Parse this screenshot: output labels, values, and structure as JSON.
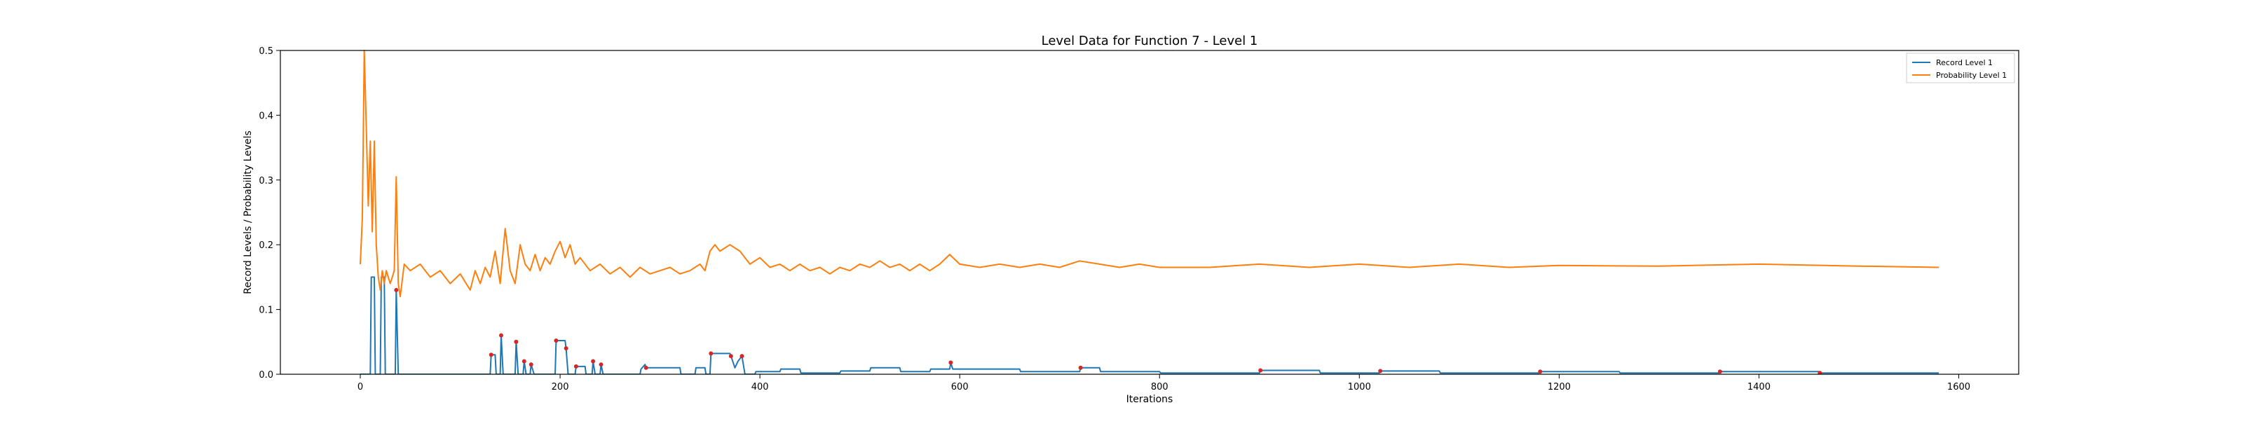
{
  "chart_data": {
    "type": "line",
    "title": "Level Data for Function 7 - Level 1",
    "xlabel": "Iterations",
    "ylabel": "Record Levels / Probability Levels",
    "xlim": [
      -80,
      1660
    ],
    "ylim": [
      0,
      0.5
    ],
    "x_ticks": [
      "0",
      "200",
      "400",
      "600",
      "800",
      "1000",
      "1200",
      "1400",
      "1600"
    ],
    "x_tick_values": [
      0,
      200,
      400,
      600,
      800,
      1000,
      1200,
      1400,
      1600
    ],
    "y_ticks": [
      "0.0",
      "0.1",
      "0.2",
      "0.3",
      "0.4",
      "0.5"
    ],
    "y_tick_values": [
      0,
      0.1,
      0.2,
      0.3,
      0.4,
      0.5
    ],
    "grid": false,
    "legend_position": "top-right",
    "series": [
      {
        "name": "Record Level 1",
        "color": "#1f77b4",
        "points": [
          [
            0,
            0
          ],
          [
            10,
            0
          ],
          [
            11,
            0.15
          ],
          [
            14,
            0.15
          ],
          [
            15,
            0
          ],
          [
            20,
            0
          ],
          [
            21,
            0.15
          ],
          [
            24,
            0.15
          ],
          [
            25,
            0
          ],
          [
            35,
            0
          ],
          [
            36,
            0.13
          ],
          [
            38,
            0
          ],
          [
            130,
            0
          ],
          [
            131,
            0.03
          ],
          [
            135,
            0.03
          ],
          [
            136,
            0
          ],
          [
            140,
            0
          ],
          [
            141,
            0.06
          ],
          [
            143,
            0
          ],
          [
            155,
            0
          ],
          [
            156,
            0.05
          ],
          [
            158,
            0
          ],
          [
            163,
            0
          ],
          [
            164,
            0.02
          ],
          [
            166,
            0
          ],
          [
            170,
            0
          ],
          [
            171,
            0.015
          ],
          [
            174,
            0
          ],
          [
            195,
            0
          ],
          [
            196,
            0.052
          ],
          [
            205,
            0.052
          ],
          [
            206,
            0.04
          ],
          [
            208,
            0
          ],
          [
            215,
            0
          ],
          [
            216,
            0.012
          ],
          [
            225,
            0.012
          ],
          [
            226,
            0
          ],
          [
            232,
            0
          ],
          [
            233,
            0.02
          ],
          [
            235,
            0
          ],
          [
            240,
            0
          ],
          [
            241,
            0.015
          ],
          [
            243,
            0
          ],
          [
            280,
            0
          ],
          [
            281,
            0.008
          ],
          [
            285,
            0.015
          ],
          [
            286,
            0.01
          ],
          [
            320,
            0.01
          ],
          [
            321,
            0
          ],
          [
            335,
            0
          ],
          [
            336,
            0.01
          ],
          [
            345,
            0.01
          ],
          [
            346,
            0
          ],
          [
            350,
            0
          ],
          [
            351,
            0.032
          ],
          [
            370,
            0.032
          ],
          [
            371,
            0.028
          ],
          [
            375,
            0.01
          ],
          [
            378,
            0.02
          ],
          [
            382,
            0.028
          ],
          [
            385,
            0
          ],
          [
            395,
            0
          ],
          [
            396,
            0.004
          ],
          [
            420,
            0.004
          ],
          [
            421,
            0.008
          ],
          [
            440,
            0.008
          ],
          [
            441,
            0.002
          ],
          [
            480,
            0.002
          ],
          [
            481,
            0.005
          ],
          [
            510,
            0.005
          ],
          [
            511,
            0.01
          ],
          [
            540,
            0.01
          ],
          [
            541,
            0.004
          ],
          [
            570,
            0.004
          ],
          [
            571,
            0.008
          ],
          [
            590,
            0.008
          ],
          [
            591,
            0.018
          ],
          [
            593,
            0.008
          ],
          [
            660,
            0.008
          ],
          [
            661,
            0.004
          ],
          [
            720,
            0.004
          ],
          [
            721,
            0.01
          ],
          [
            740,
            0.01
          ],
          [
            741,
            0.004
          ],
          [
            800,
            0.004
          ],
          [
            801,
            0.002
          ],
          [
            900,
            0.002
          ],
          [
            901,
            0.006
          ],
          [
            960,
            0.006
          ],
          [
            961,
            0.002
          ],
          [
            1020,
            0.002
          ],
          [
            1021,
            0.005
          ],
          [
            1080,
            0.005
          ],
          [
            1081,
            0.002
          ],
          [
            1180,
            0.002
          ],
          [
            1181,
            0.004
          ],
          [
            1260,
            0.004
          ],
          [
            1261,
            0.002
          ],
          [
            1360,
            0.002
          ],
          [
            1361,
            0.004
          ],
          [
            1460,
            0.004
          ],
          [
            1461,
            0.002
          ],
          [
            1580,
            0.002
          ]
        ]
      },
      {
        "name": "Probability Level 1",
        "color": "#ff7f0e",
        "points": [
          [
            0,
            0.17
          ],
          [
            2,
            0.24
          ],
          [
            4,
            0.5
          ],
          [
            6,
            0.38
          ],
          [
            8,
            0.26
          ],
          [
            10,
            0.36
          ],
          [
            12,
            0.22
          ],
          [
            14,
            0.36
          ],
          [
            16,
            0.2
          ],
          [
            18,
            0.15
          ],
          [
            20,
            0.13
          ],
          [
            22,
            0.16
          ],
          [
            24,
            0.14
          ],
          [
            26,
            0.16
          ],
          [
            28,
            0.15
          ],
          [
            30,
            0.14
          ],
          [
            32,
            0.15
          ],
          [
            34,
            0.16
          ],
          [
            36,
            0.305
          ],
          [
            38,
            0.14
          ],
          [
            40,
            0.12
          ],
          [
            44,
            0.17
          ],
          [
            50,
            0.16
          ],
          [
            60,
            0.17
          ],
          [
            70,
            0.15
          ],
          [
            80,
            0.16
          ],
          [
            90,
            0.14
          ],
          [
            100,
            0.155
          ],
          [
            110,
            0.13
          ],
          [
            115,
            0.16
          ],
          [
            120,
            0.14
          ],
          [
            125,
            0.165
          ],
          [
            130,
            0.15
          ],
          [
            135,
            0.19
          ],
          [
            140,
            0.14
          ],
          [
            145,
            0.225
          ],
          [
            150,
            0.16
          ],
          [
            155,
            0.14
          ],
          [
            160,
            0.2
          ],
          [
            165,
            0.17
          ],
          [
            170,
            0.16
          ],
          [
            175,
            0.185
          ],
          [
            180,
            0.16
          ],
          [
            185,
            0.18
          ],
          [
            190,
            0.17
          ],
          [
            195,
            0.19
          ],
          [
            200,
            0.205
          ],
          [
            205,
            0.18
          ],
          [
            210,
            0.2
          ],
          [
            215,
            0.17
          ],
          [
            220,
            0.18
          ],
          [
            230,
            0.16
          ],
          [
            240,
            0.17
          ],
          [
            250,
            0.155
          ],
          [
            260,
            0.165
          ],
          [
            270,
            0.15
          ],
          [
            280,
            0.165
          ],
          [
            290,
            0.155
          ],
          [
            300,
            0.16
          ],
          [
            310,
            0.165
          ],
          [
            320,
            0.155
          ],
          [
            330,
            0.16
          ],
          [
            340,
            0.17
          ],
          [
            345,
            0.16
          ],
          [
            350,
            0.19
          ],
          [
            355,
            0.2
          ],
          [
            360,
            0.19
          ],
          [
            370,
            0.2
          ],
          [
            380,
            0.19
          ],
          [
            390,
            0.17
          ],
          [
            400,
            0.18
          ],
          [
            410,
            0.165
          ],
          [
            420,
            0.17
          ],
          [
            430,
            0.16
          ],
          [
            440,
            0.17
          ],
          [
            450,
            0.16
          ],
          [
            460,
            0.165
          ],
          [
            470,
            0.155
          ],
          [
            480,
            0.165
          ],
          [
            490,
            0.16
          ],
          [
            500,
            0.17
          ],
          [
            510,
            0.165
          ],
          [
            520,
            0.175
          ],
          [
            530,
            0.165
          ],
          [
            540,
            0.17
          ],
          [
            550,
            0.16
          ],
          [
            560,
            0.17
          ],
          [
            570,
            0.16
          ],
          [
            580,
            0.17
          ],
          [
            590,
            0.185
          ],
          [
            600,
            0.17
          ],
          [
            620,
            0.165
          ],
          [
            640,
            0.17
          ],
          [
            660,
            0.165
          ],
          [
            680,
            0.17
          ],
          [
            700,
            0.165
          ],
          [
            720,
            0.175
          ],
          [
            740,
            0.17
          ],
          [
            760,
            0.165
          ],
          [
            780,
            0.17
          ],
          [
            800,
            0.165
          ],
          [
            850,
            0.165
          ],
          [
            900,
            0.17
          ],
          [
            950,
            0.165
          ],
          [
            1000,
            0.17
          ],
          [
            1050,
            0.165
          ],
          [
            1100,
            0.17
          ],
          [
            1150,
            0.165
          ],
          [
            1200,
            0.168
          ],
          [
            1300,
            0.167
          ],
          [
            1400,
            0.17
          ],
          [
            1500,
            0.167
          ],
          [
            1580,
            0.165
          ]
        ]
      }
    ],
    "markers": {
      "color": "#d62728",
      "name": "record-update-marker",
      "x": [
        36,
        131,
        141,
        156,
        164,
        171,
        196,
        206,
        216,
        233,
        241,
        286,
        351,
        371,
        382,
        591,
        721,
        901,
        1021,
        1181,
        1361,
        1461
      ]
    }
  }
}
